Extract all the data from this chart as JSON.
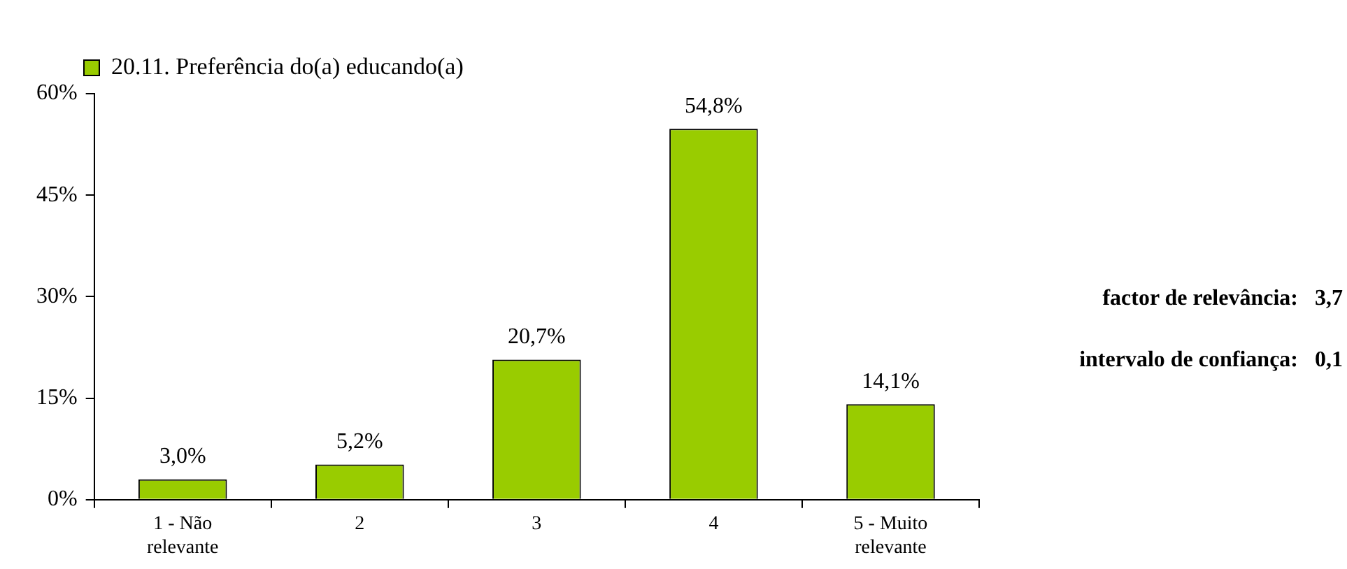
{
  "chart_data": {
    "type": "bar",
    "categories": [
      "1 - Não relevante",
      "2",
      "3",
      "4",
      "5 - Muito relevante"
    ],
    "series": [
      {
        "name": "20.11. Preferência do(a) educando(a)",
        "color": "#99cc00",
        "values": [
          3.0,
          5.2,
          20.7,
          54.8,
          14.1
        ],
        "value_labels": [
          "3,0%",
          "5,2%",
          "20,7%",
          "54,8%",
          "14,1%"
        ]
      }
    ],
    "ylim": [
      0,
      60
    ],
    "yticks": [
      {
        "value": 0,
        "label": "0%"
      },
      {
        "value": 15,
        "label": "15%"
      },
      {
        "value": 30,
        "label": "30%"
      },
      {
        "value": 45,
        "label": "45%"
      },
      {
        "value": 60,
        "label": "60%"
      }
    ],
    "grid": false,
    "legend": "top left",
    "annotations": [
      "factor de relevância:   3,7",
      "intervalo de confiança:   0,1"
    ]
  }
}
